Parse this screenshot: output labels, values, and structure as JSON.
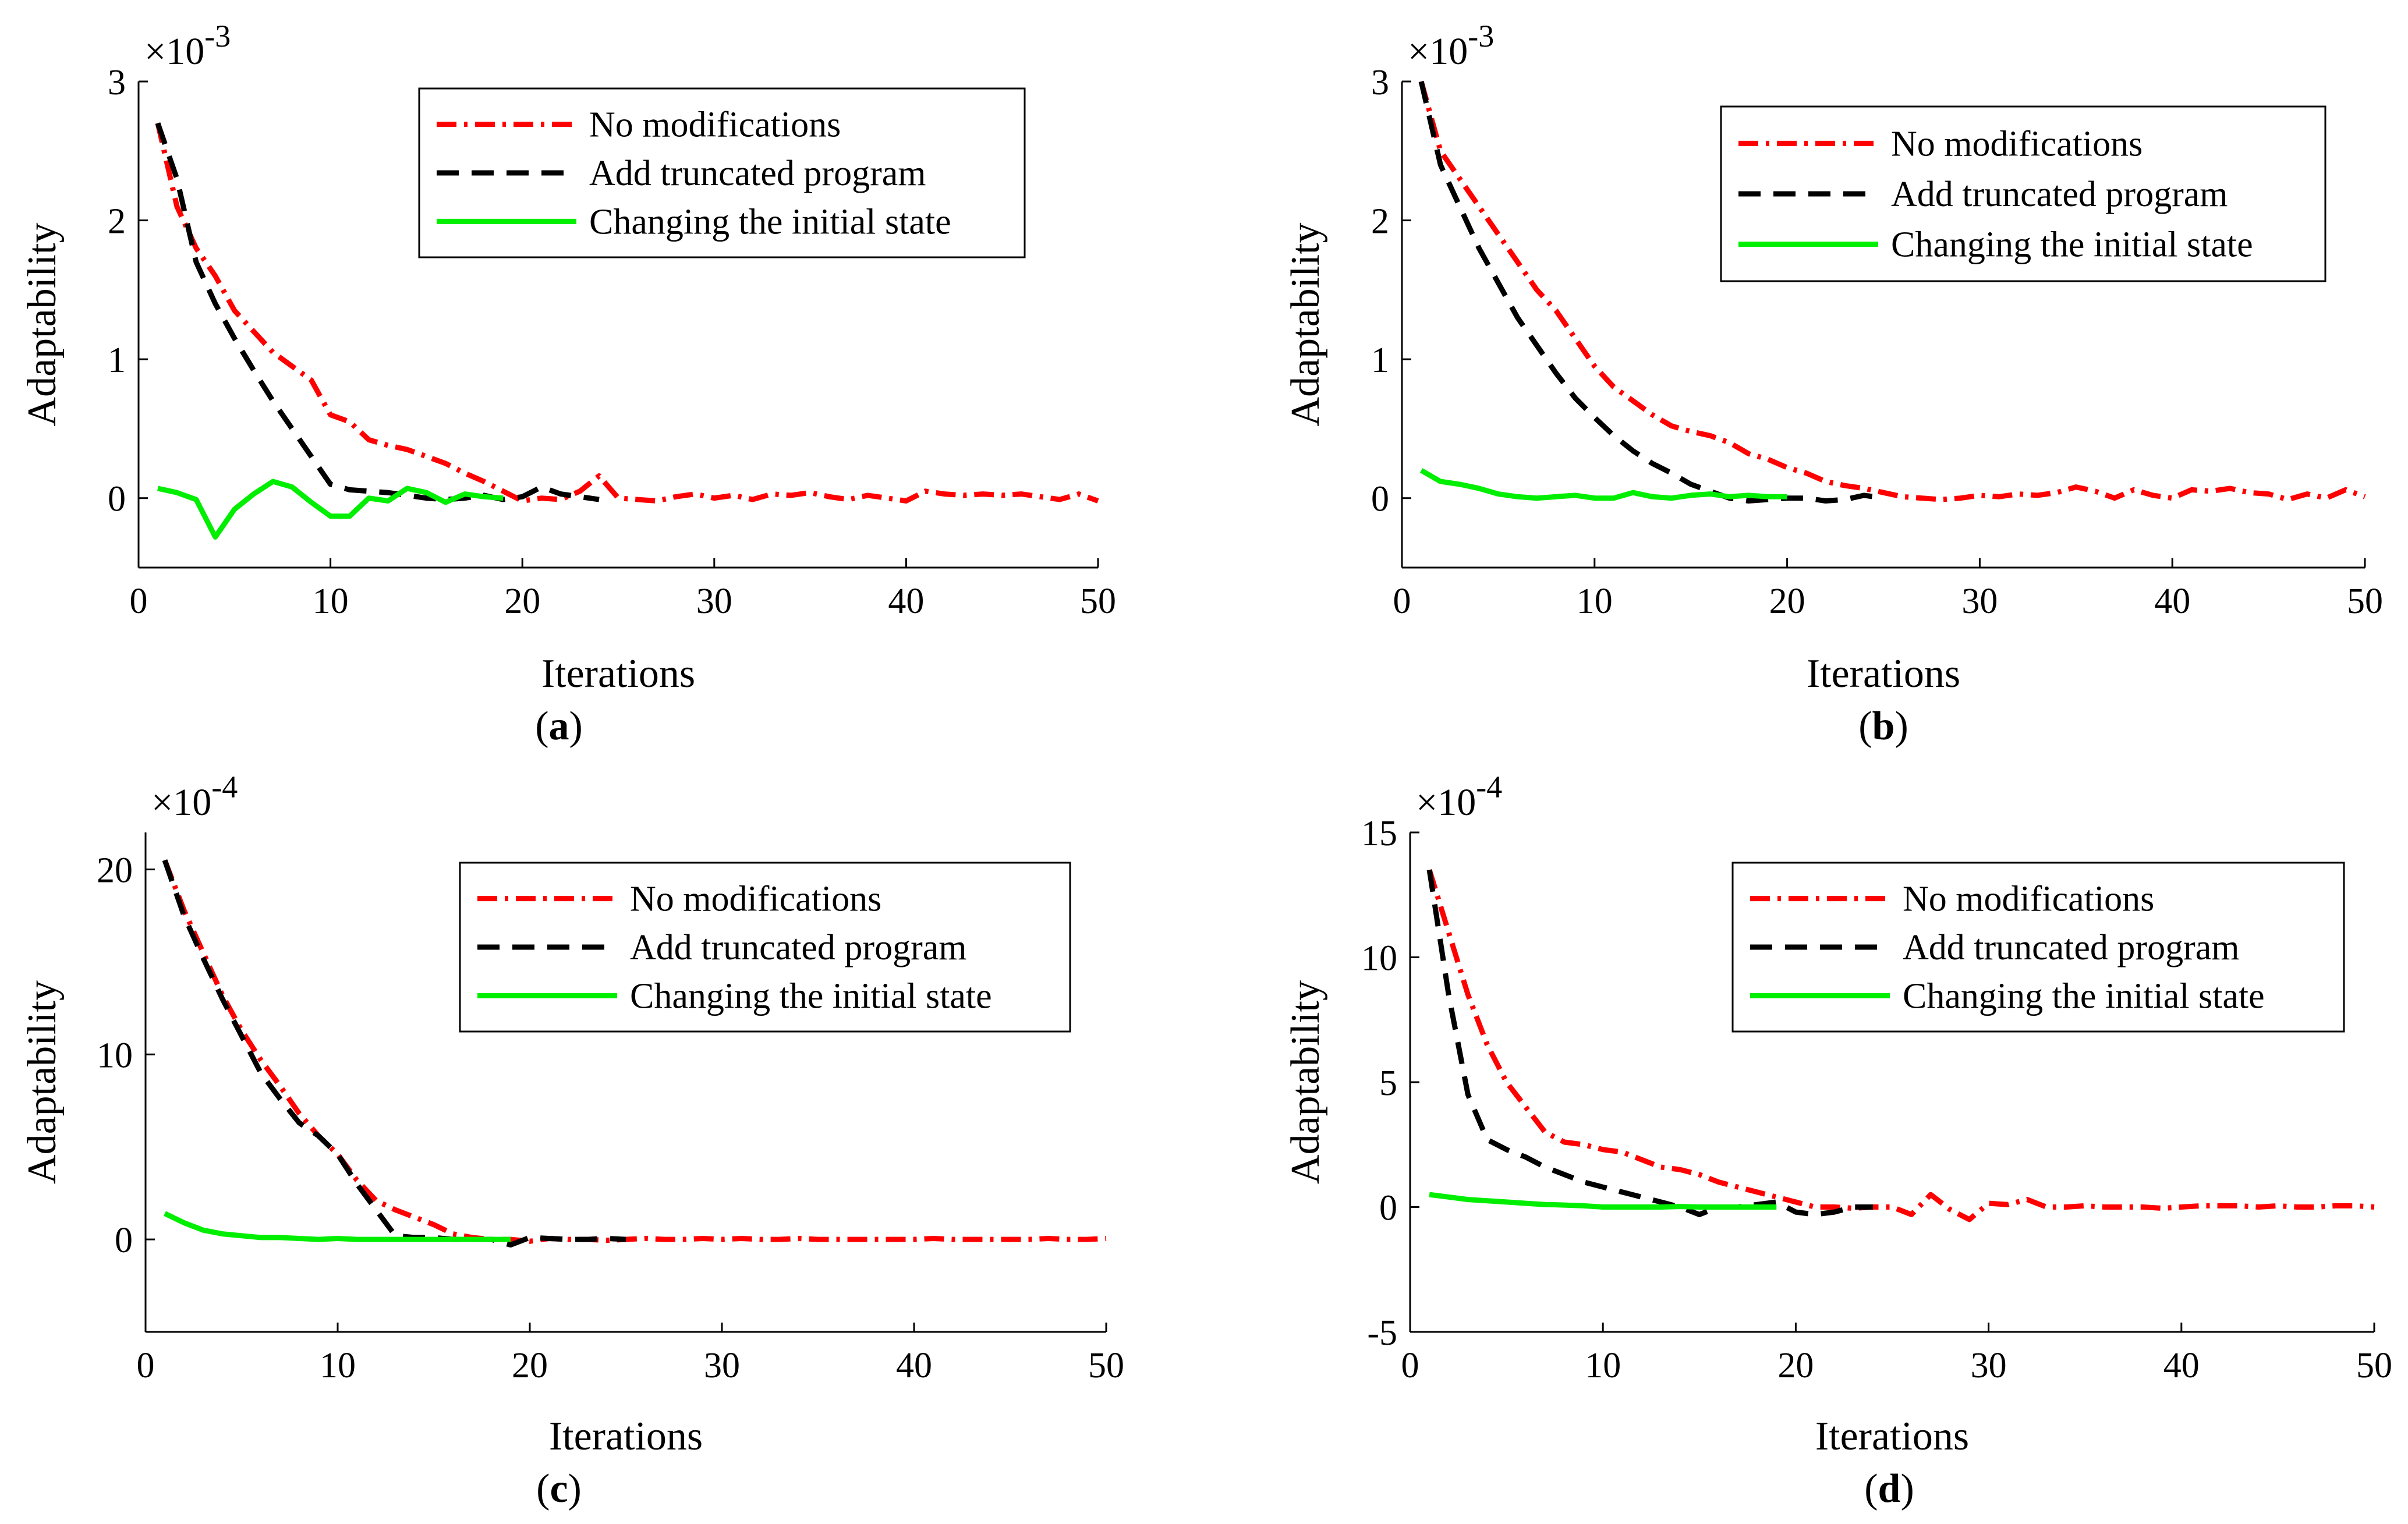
{
  "legend": {
    "no_mod": "No modifications",
    "trunc": "Add truncated program",
    "init": "Changing the initial state"
  },
  "colors": {
    "no_mod": "#ff0000",
    "trunc": "#000000",
    "init": "#00ee00"
  },
  "multiplier_base": "×10",
  "chart_data": [
    {
      "id": "a",
      "type": "line",
      "caption": "a",
      "exponent": "-3",
      "xlabel": "Iterations",
      "ylabel": "Adaptability",
      "xlim": [
        0,
        50
      ],
      "ylim": [
        -0.5,
        3
      ],
      "xticks": [
        0,
        10,
        20,
        30,
        40,
        50
      ],
      "yticks": [
        0,
        1,
        2,
        3
      ],
      "legend_position": "top-right",
      "series": [
        {
          "key": "no_mod",
          "name": "No modifications",
          "x": [
            1,
            2,
            3,
            4,
            5,
            6,
            7,
            8,
            9,
            10,
            11,
            12,
            13,
            14,
            15,
            16,
            17,
            18,
            19,
            20,
            21,
            22,
            23,
            24,
            25,
            26,
            27,
            28,
            29,
            30,
            31,
            32,
            33,
            34,
            35,
            36,
            37,
            38,
            39,
            40,
            41,
            42,
            43,
            44,
            45,
            46,
            47,
            48,
            49,
            50
          ],
          "y": [
            2.7,
            2.1,
            1.8,
            1.6,
            1.35,
            1.2,
            1.05,
            0.95,
            0.85,
            0.6,
            0.55,
            0.42,
            0.38,
            0.35,
            0.3,
            0.25,
            0.18,
            0.12,
            0.05,
            -0.02,
            0.0,
            -0.01,
            0.05,
            0.16,
            0.0,
            -0.01,
            -0.02,
            0.01,
            0.03,
            0.0,
            0.02,
            -0.01,
            0.03,
            0.02,
            0.04,
            0.01,
            -0.01,
            0.02,
            0.0,
            -0.02,
            0.05,
            0.03,
            0.02,
            0.03,
            0.02,
            0.03,
            0.01,
            -0.01,
            0.03,
            -0.02
          ]
        },
        {
          "key": "trunc",
          "name": "Add truncated program",
          "x": [
            1,
            2,
            3,
            4,
            5,
            6,
            7,
            8,
            9,
            10,
            11,
            12,
            13,
            14,
            15,
            16,
            17,
            18,
            19,
            20,
            21,
            22,
            23,
            24
          ],
          "y": [
            2.7,
            2.3,
            1.7,
            1.4,
            1.15,
            0.92,
            0.7,
            0.5,
            0.3,
            0.1,
            0.06,
            0.05,
            0.04,
            0.02,
            0.0,
            -0.01,
            0.0,
            0.02,
            -0.01,
            0.01,
            0.08,
            0.03,
            0.01,
            -0.01
          ]
        },
        {
          "key": "init",
          "name": "Changing the initial state",
          "x": [
            1,
            2,
            3,
            4,
            5,
            6,
            7,
            8,
            9,
            10,
            11,
            12,
            13,
            14,
            15,
            16,
            17,
            18,
            19
          ],
          "y": [
            0.07,
            0.04,
            -0.01,
            -0.28,
            -0.08,
            0.03,
            0.12,
            0.08,
            -0.03,
            -0.13,
            -0.13,
            0.0,
            -0.02,
            0.07,
            0.04,
            -0.03,
            0.03,
            0.01,
            0.0
          ]
        }
      ]
    },
    {
      "id": "b",
      "type": "line",
      "caption": "b",
      "exponent": "-3",
      "xlabel": "Iterations",
      "ylabel": "Adaptability",
      "xlim": [
        0,
        50
      ],
      "ylim": [
        -0.5,
        3
      ],
      "xticks": [
        0,
        10,
        20,
        30,
        40,
        50
      ],
      "yticks": [
        0,
        1,
        2,
        3
      ],
      "legend_position": "top-right",
      "series": [
        {
          "key": "no_mod",
          "name": "No modifications",
          "x": [
            1,
            2,
            3,
            4,
            5,
            6,
            7,
            8,
            9,
            10,
            11,
            12,
            13,
            14,
            15,
            16,
            17,
            18,
            19,
            20,
            21,
            22,
            23,
            24,
            25,
            26,
            27,
            28,
            29,
            30,
            31,
            32,
            33,
            34,
            35,
            36,
            37,
            38,
            39,
            40,
            41,
            42,
            43,
            44,
            45,
            46,
            47,
            48,
            49,
            50
          ],
          "y": [
            3.0,
            2.5,
            2.3,
            2.1,
            1.9,
            1.7,
            1.5,
            1.35,
            1.15,
            0.95,
            0.8,
            0.7,
            0.6,
            0.52,
            0.48,
            0.45,
            0.4,
            0.32,
            0.28,
            0.22,
            0.18,
            0.12,
            0.09,
            0.07,
            0.04,
            0.01,
            0.0,
            -0.01,
            0.0,
            0.02,
            0.01,
            0.03,
            0.02,
            0.04,
            0.08,
            0.05,
            0.0,
            0.06,
            0.02,
            0.0,
            0.06,
            0.05,
            0.07,
            0.04,
            0.03,
            -0.01,
            0.03,
            0.0,
            0.06,
            0.01
          ]
        },
        {
          "key": "trunc",
          "name": "Add truncated program",
          "x": [
            1,
            2,
            3,
            4,
            5,
            6,
            7,
            8,
            9,
            10,
            11,
            12,
            13,
            14,
            15,
            16,
            17,
            18,
            19,
            20,
            21,
            22,
            23,
            24,
            25
          ],
          "y": [
            3.0,
            2.4,
            2.1,
            1.8,
            1.55,
            1.3,
            1.1,
            0.9,
            0.72,
            0.58,
            0.45,
            0.34,
            0.25,
            0.18,
            0.1,
            0.05,
            0.0,
            -0.02,
            -0.01,
            0.0,
            0.0,
            -0.02,
            -0.01,
            0.02,
            0.0
          ]
        },
        {
          "key": "init",
          "name": "Changing the initial state",
          "x": [
            1,
            2,
            3,
            4,
            5,
            6,
            7,
            8,
            9,
            10,
            11,
            12,
            13,
            14,
            15,
            16,
            17,
            18,
            19,
            20
          ],
          "y": [
            0.2,
            0.12,
            0.1,
            0.07,
            0.03,
            0.01,
            0.0,
            0.01,
            0.02,
            0.0,
            0.0,
            0.04,
            0.01,
            0.0,
            0.02,
            0.03,
            0.01,
            0.02,
            0.01,
            0.01
          ]
        }
      ]
    },
    {
      "id": "c",
      "type": "line",
      "caption": "c",
      "exponent": "-4",
      "xlabel": "Iterations",
      "ylabel": "Adaptability",
      "xlim": [
        0,
        50
      ],
      "ylim": [
        -5,
        22
      ],
      "xticks": [
        0,
        10,
        20,
        30,
        40,
        50
      ],
      "yticks": [
        0,
        10,
        20
      ],
      "legend_position": "top-right",
      "series": [
        {
          "key": "no_mod",
          "name": "No modifications",
          "x": [
            1,
            2,
            3,
            4,
            5,
            6,
            7,
            8,
            9,
            10,
            11,
            12,
            13,
            14,
            15,
            16,
            17,
            18,
            19,
            20,
            21,
            22,
            23,
            24,
            25,
            26,
            27,
            28,
            29,
            30,
            31,
            32,
            33,
            34,
            35,
            36,
            37,
            38,
            39,
            40,
            41,
            42,
            43,
            44,
            45,
            46,
            47,
            48,
            49,
            50
          ],
          "y": [
            20.5,
            17.8,
            15.5,
            13.2,
            11.3,
            9.7,
            8.3,
            6.8,
            5.6,
            4.6,
            3.2,
            2.1,
            1.6,
            1.2,
            0.8,
            0.3,
            0.1,
            0.0,
            0.0,
            -0.1,
            0.05,
            0.0,
            0.0,
            -0.05,
            0.0,
            0.05,
            0.0,
            0.0,
            0.05,
            0.0,
            0.05,
            0.0,
            0.0,
            0.05,
            0.0,
            0.0,
            0.0,
            0.0,
            0.0,
            0.0,
            0.05,
            0.0,
            0.0,
            0.0,
            0.0,
            0.0,
            0.05,
            0.0,
            0.0,
            0.05
          ]
        },
        {
          "key": "trunc",
          "name": "Add truncated program",
          "x": [
            1,
            2,
            3,
            4,
            5,
            6,
            7,
            8,
            9,
            10,
            11,
            12,
            13,
            14,
            15,
            16,
            17,
            18,
            19,
            20,
            21,
            22,
            23,
            24,
            25
          ],
          "y": [
            20.5,
            17.5,
            15.2,
            13.0,
            11.0,
            9.0,
            7.6,
            6.3,
            5.6,
            4.6,
            3.0,
            1.6,
            0.2,
            0.1,
            0.1,
            0.0,
            0.0,
            0.0,
            -0.3,
            0.1,
            0.05,
            0.0,
            0.0,
            0.05,
            0.0
          ]
        },
        {
          "key": "init",
          "name": "Changing the initial state",
          "x": [
            1,
            2,
            3,
            4,
            5,
            6,
            7,
            8,
            9,
            10,
            11,
            12,
            13,
            14,
            15,
            16,
            17,
            18,
            19
          ],
          "y": [
            1.4,
            0.9,
            0.5,
            0.3,
            0.2,
            0.1,
            0.1,
            0.05,
            0.0,
            0.05,
            0.0,
            0.0,
            0.0,
            0.0,
            0.0,
            0.0,
            0.0,
            0.0,
            0.0
          ]
        }
      ]
    },
    {
      "id": "d",
      "type": "line",
      "caption": "d",
      "exponent": "-4",
      "xlabel": "Iterations",
      "ylabel": "Adaptability",
      "xlim": [
        0,
        50
      ],
      "ylim": [
        -5,
        15
      ],
      "xticks": [
        0,
        10,
        20,
        30,
        40,
        50
      ],
      "yticks": [
        -5,
        0,
        5,
        10,
        15
      ],
      "legend_position": "top-right",
      "series": [
        {
          "key": "no_mod",
          "name": "No modifications",
          "x": [
            1,
            2,
            3,
            4,
            5,
            6,
            7,
            8,
            9,
            10,
            11,
            12,
            13,
            14,
            15,
            16,
            17,
            18,
            19,
            20,
            21,
            22,
            23,
            24,
            25,
            26,
            27,
            28,
            29,
            30,
            31,
            32,
            33,
            34,
            35,
            36,
            37,
            38,
            39,
            40,
            41,
            42,
            43,
            44,
            45,
            46,
            47,
            48,
            49,
            50
          ],
          "y": [
            13.5,
            11.0,
            8.5,
            6.5,
            5.0,
            4.0,
            3.0,
            2.6,
            2.5,
            2.3,
            2.2,
            1.9,
            1.6,
            1.5,
            1.3,
            1.0,
            0.8,
            0.6,
            0.4,
            0.2,
            0.0,
            0.0,
            -0.05,
            0.0,
            0.0,
            -0.3,
            0.5,
            -0.1,
            -0.5,
            0.15,
            0.1,
            0.3,
            0.0,
            0.0,
            0.05,
            0.0,
            0.0,
            0.0,
            -0.05,
            0.0,
            0.05,
            0.05,
            0.05,
            0.0,
            0.05,
            0.0,
            0.0,
            0.05,
            0.05,
            0.0
          ]
        },
        {
          "key": "trunc",
          "name": "Add truncated program",
          "x": [
            1,
            2,
            3,
            4,
            5,
            6,
            7,
            8,
            9,
            10,
            11,
            12,
            13,
            14,
            15,
            16,
            17,
            18,
            19,
            20,
            21,
            22,
            23,
            24
          ],
          "y": [
            13.5,
            8.5,
            4.5,
            2.7,
            2.3,
            2.0,
            1.6,
            1.3,
            1.0,
            0.8,
            0.6,
            0.4,
            0.2,
            0.0,
            -0.3,
            0.0,
            0.0,
            0.1,
            0.2,
            -0.2,
            -0.3,
            -0.2,
            0.0,
            0.0
          ]
        },
        {
          "key": "init",
          "name": "Changing the initial state",
          "x": [
            1,
            2,
            3,
            4,
            5,
            6,
            7,
            8,
            9,
            10,
            11,
            12,
            13,
            14,
            15,
            16,
            17,
            18,
            19
          ],
          "y": [
            0.5,
            0.4,
            0.3,
            0.25,
            0.2,
            0.15,
            0.1,
            0.08,
            0.05,
            0.0,
            0.0,
            0.0,
            0.0,
            0.02,
            0.0,
            0.0,
            0.0,
            0.0,
            0.0
          ]
        }
      ]
    }
  ]
}
